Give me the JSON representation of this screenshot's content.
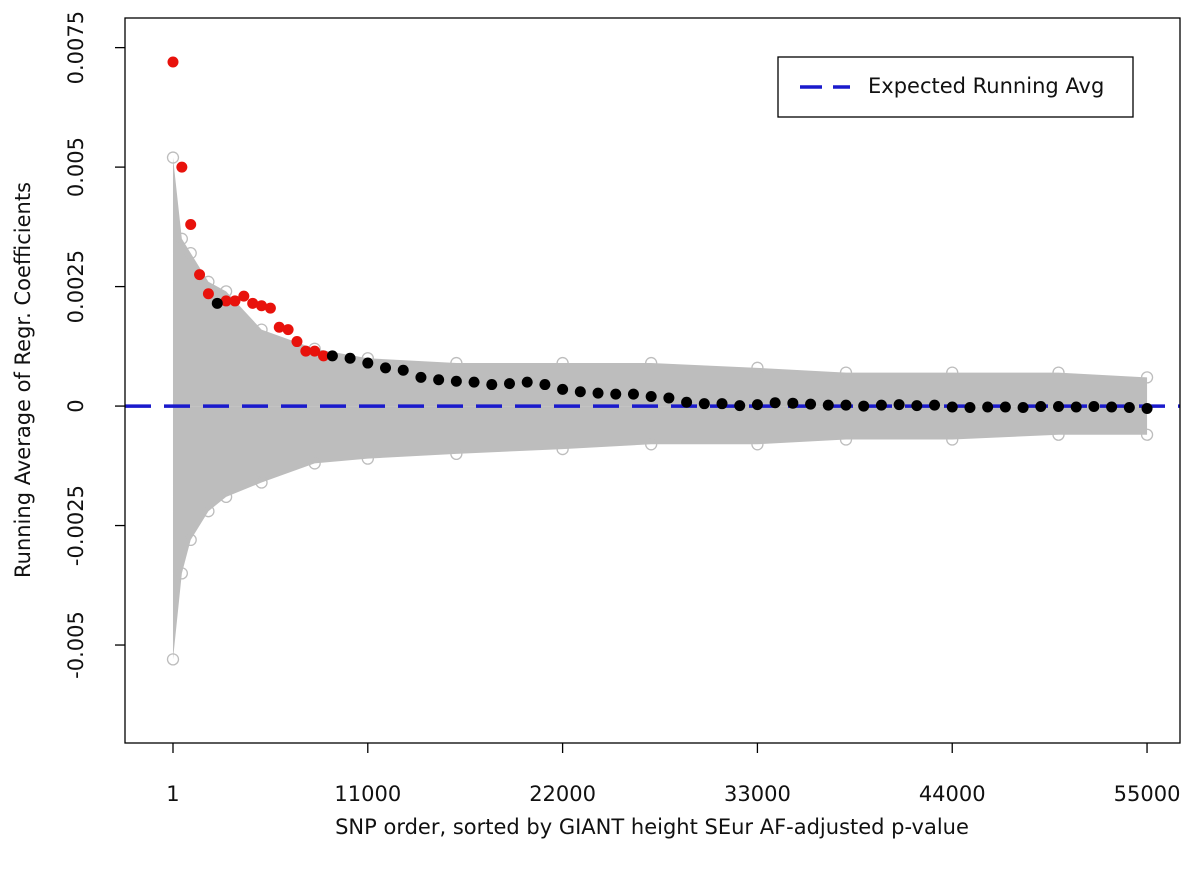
{
  "chart_data": {
    "type": "scatter",
    "x_label": "SNP order, sorted by GIANT height SEur AF-adjusted p-value",
    "y_label": "Running Average of Regr. Coefficients",
    "xlim": [
      -2709,
      56861
    ],
    "ylim": [
      -0.00705,
      0.00812
    ],
    "xticks": [
      1,
      11000,
      22000,
      33000,
      44000,
      55000
    ],
    "yticks": [
      -0.005,
      -0.0025,
      0,
      0.0025,
      0.005,
      0.0075
    ],
    "legend_position": "top-right",
    "reference_line": {
      "name": "Expected Running Avg",
      "value": 0,
      "color": "#1a1acc"
    },
    "series": [
      {
        "color": "#bdbdbd",
        "style": "envelope",
        "x": [
          1,
          501,
          1001,
          2001,
          3001,
          5001,
          8001,
          11001,
          16001,
          22001,
          27001,
          33001,
          38001,
          44001,
          50001,
          55001
        ],
        "values": [
          0.0052,
          0.0035,
          0.0032,
          0.0026,
          0.0024,
          0.0016,
          0.0012,
          0.001,
          0.0009,
          0.0009,
          0.0009,
          0.0008,
          0.0007,
          0.0007,
          0.0007,
          0.0006
        ]
      },
      {
        "color": "#bdbdbd",
        "style": "envelope",
        "x": [
          1,
          501,
          1001,
          2001,
          3001,
          5001,
          8001,
          11001,
          16001,
          22001,
          27001,
          33001,
          38001,
          44001,
          50001,
          55001
        ],
        "values": [
          -0.0053,
          -0.0035,
          -0.0028,
          -0.0022,
          -0.0019,
          -0.0016,
          -0.0012,
          -0.0011,
          -0.001,
          -0.0009,
          -0.0008,
          -0.0008,
          -0.0007,
          -0.0007,
          -0.0006,
          -0.0006
        ]
      },
      {
        "color": "#e8120c",
        "style": "points",
        "x": [
          1,
          501,
          1001,
          1501,
          2001,
          3001,
          3501,
          4001,
          4501,
          5001,
          5501,
          6001,
          6501,
          7001,
          7501,
          8001,
          8501
        ],
        "values": [
          0.0072,
          0.005,
          0.0038,
          0.00275,
          0.00235,
          0.0022,
          0.0022,
          0.0023,
          0.00215,
          0.0021,
          0.00205,
          0.00165,
          0.0016,
          0.00135,
          0.00115,
          0.00115,
          0.00105
        ]
      },
      {
        "color": "#000000",
        "style": "points",
        "x": [
          2501,
          9001,
          10001,
          11001,
          12001,
          13001,
          14001,
          15001,
          16001,
          17001,
          18001,
          19001,
          20001,
          21001,
          22001,
          23001,
          24001,
          25001,
          26001,
          27001,
          28001,
          29001,
          30001,
          31001,
          32001,
          33001,
          34001,
          35001,
          36001,
          37001,
          38001,
          39001,
          40001,
          41001,
          42001,
          43001,
          44001,
          45001,
          46001,
          47001,
          48001,
          49001,
          50001,
          51001,
          52001,
          53001,
          54001,
          55001
        ],
        "values": [
          0.00215,
          0.00105,
          0.001,
          0.0009,
          0.0008,
          0.00075,
          0.0006,
          0.00055,
          0.00052,
          0.0005,
          0.00045,
          0.00047,
          0.0005,
          0.00045,
          0.00035,
          0.0003,
          0.00027,
          0.00025,
          0.00025,
          0.0002,
          0.00017,
          8e-05,
          5e-05,
          5e-05,
          1e-05,
          3e-05,
          7e-05,
          6e-05,
          4e-05,
          2e-05,
          2e-05,
          0,
          2e-05,
          3e-05,
          1e-05,
          2e-05,
          -2e-05,
          -3e-05,
          -2e-05,
          -2e-05,
          -3e-05,
          -1e-05,
          -1e-05,
          -2e-05,
          -1e-05,
          -2e-05,
          -3e-05,
          -5e-05
        ]
      }
    ]
  }
}
